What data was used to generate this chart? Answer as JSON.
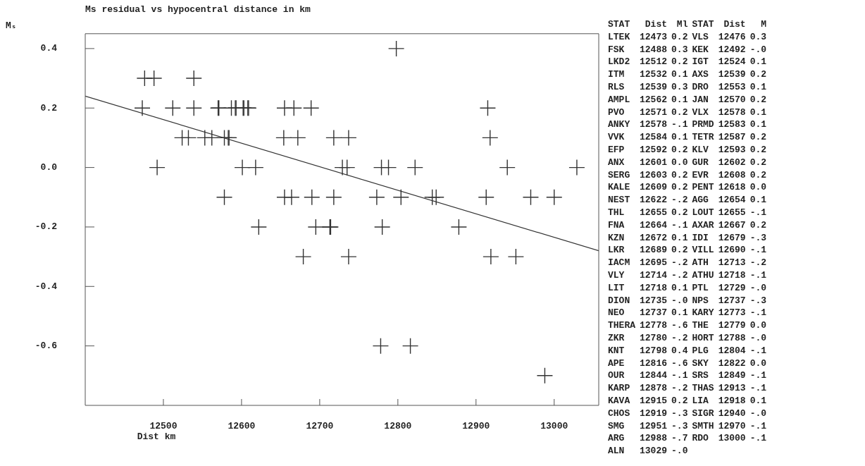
{
  "chart_data": [
    {
      "type": "scatter",
      "title": "Ms residual vs hypocentral distance in km",
      "xlabel": "Dist km",
      "ylabel": "Mₛ",
      "xlim": [
        12400,
        13057
      ],
      "xticks": [
        12500,
        12600,
        12700,
        12800,
        12900,
        13000
      ],
      "ylim": [
        -0.8,
        0.45
      ],
      "yticks": [
        {
          "value": 0.4,
          "label": "0.4"
        },
        {
          "value": 0.2,
          "label": "0.2"
        },
        {
          "value": 0,
          "label": "0.0"
        },
        {
          "value": -0.2,
          "label": "-0.2"
        },
        {
          "value": -0.4,
          "label": "-0.4"
        },
        {
          "value": -0.6,
          "label": "-0.6"
        }
      ],
      "grid": false,
      "legend": false,
      "marker": "cross",
      "series": [
        {
          "type": "scatter",
          "color": "#333333",
          "x": [
            12473,
            12476,
            12488,
            12492,
            12512,
            12524,
            12532,
            12539,
            12539,
            12553,
            12562,
            12570,
            12571,
            12578,
            12578,
            12583,
            12584,
            12587,
            12592,
            12593,
            12601,
            12602,
            12603,
            12608,
            12609,
            12618,
            12622,
            12654,
            12655,
            12655,
            12664,
            12667,
            12672,
            12679,
            12689,
            12690,
            12695,
            12713,
            12714,
            12718,
            12718,
            12729,
            12735,
            12737,
            12737,
            12773,
            12778,
            12779,
            12780,
            12788,
            12798,
            12804,
            12816,
            12822,
            12844,
            12849,
            12878,
            12913,
            12915,
            12918,
            12919,
            12940,
            12951,
            12970,
            12988,
            13000,
            13029
          ],
          "values": [
            0.2,
            0.3,
            0.3,
            0,
            0.2,
            0.1,
            0.1,
            0.2,
            0.3,
            0.1,
            0.1,
            0.2,
            0.2,
            0.1,
            -0.1,
            0.1,
            0.1,
            0.2,
            0.2,
            0.2,
            0,
            0.2,
            0.2,
            0.2,
            0.2,
            0,
            -0.2,
            0.1,
            0.2,
            -0.1,
            -0.1,
            0.2,
            0.1,
            -0.3,
            0.2,
            -0.1,
            -0.2,
            -0.2,
            -0.2,
            -0.1,
            0.1,
            0,
            0,
            -0.3,
            0.1,
            -0.1,
            -0.6,
            0,
            -0.2,
            0,
            0.4,
            -0.1,
            -0.6,
            0,
            -0.1,
            -0.1,
            -0.2,
            -0.1,
            0.2,
            0.1,
            -0.3,
            0,
            -0.3,
            -0.1,
            -0.7,
            -0.1,
            0
          ]
        },
        {
          "type": "line",
          "color": "#333333",
          "marker": "none",
          "x": [
            12400,
            13057
          ],
          "values": [
            0.24,
            -0.28
          ]
        }
      ],
      "annotations": [
        "STAT Dist Ml STAT Dist M",
        "LTEK 12473 0.2 VLS 12476 0.3",
        "FSK 12488 0.3 KEK 12492 -.0",
        "LKD2 12512 0.2 IGT 12524 0.1",
        "ITM 12532 0.1 AXS 12539 0.2",
        "RLS 12539 0.3 DRO 12553 0.1",
        "AMPL 12562 0.1 JAN 12570 0.2",
        "PVO 12571 0.2 VLX 12578 0.1",
        "ANKY 12578 -.1 PRMD 12583 0.1",
        "VVK 12584 0.1 TETR 12587 0.2",
        "EFP 12592 0.2 KLV 12593 0.2",
        "ANX 12601 0.0 GUR 12602 0.2",
        "SERG 12603 0.2 EVR 12608 0.2",
        "KALE 12609 0.2 PENT 12618 0.0",
        "NEST 12622 -.2 AGG 12654 0.1",
        "THL 12655 0.2 LOUT 12655 -.1",
        "FNA 12664 -.1 AXAR 12667 0.2",
        "KZN 12672 0.1 IDI 12679 -.3",
        "LKR 12689 0.2 VILL 12690 -.1",
        "IACM 12695 -.2 ATH 12713 -.2",
        "VLY 12714 -.2 ATHU 12718 -.1",
        "LIT 12718 0.1 PTL 12729 -.0",
        "DION 12735 -.0 NPS 12737 -.3",
        "NEO 12737 0.1 KARY 12773 -.1",
        "THERA 12778 -.6 THE 12779 0.0",
        "ZKR 12780 -.2 HORT 12788 -.0",
        "KNT 12798 0.4 PLG 12804 -.1",
        "APE 12816 -.6 SKY 12822 0.0",
        "OUR 12844 -.1 SRS 12849 -.1",
        "KARP 12878 -.2 THAS 12913 -.1",
        "KAVA 12915 0.2 LIA 12918 0.1",
        "CHOS 12919 -.3 SIGR 12940 -.0",
        "SMG 12951 -.3 SMTH 12970 -.1",
        "ARG 12988 -.7 RDO 13000 -.1",
        "ALN 13029 -.0"
      ]
    }
  ]
}
